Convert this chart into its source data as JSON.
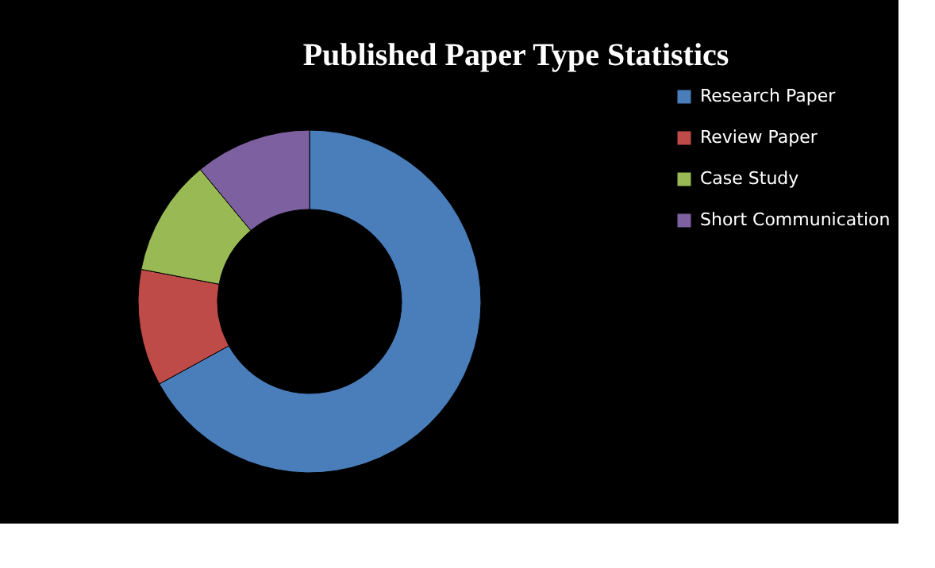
{
  "chart_data": {
    "type": "donut",
    "title": "Published Paper Type Statistics",
    "categories": [
      "Research Paper",
      "Review Paper",
      "Case Study",
      "Short Communication"
    ],
    "values": [
      67,
      11,
      11,
      11
    ],
    "colors": [
      "#4a7ebb",
      "#be4b48",
      "#98b954",
      "#7d60a0"
    ],
    "legend": "right"
  }
}
